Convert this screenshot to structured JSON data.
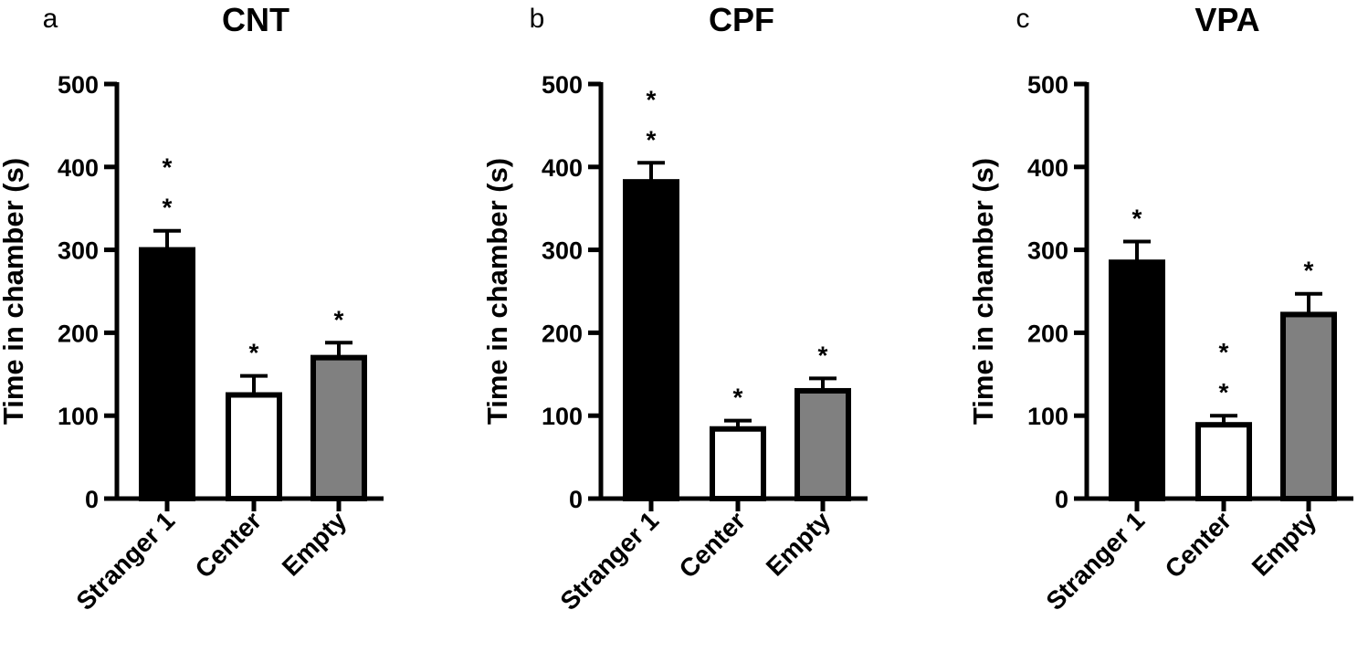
{
  "colors": {
    "Stranger 1": "#000000",
    "Center": "#ffffff",
    "Empty": "#808080"
  },
  "chart_data": [
    {
      "type": "bar",
      "panel": "a",
      "title": "CNT",
      "ylabel": "Time in chamber (s)",
      "xlabel": "",
      "categories": [
        "Stranger 1",
        "Center",
        "Empty"
      ],
      "values": [
        300,
        125,
        170
      ],
      "errors": [
        23,
        23,
        18
      ],
      "significance": [
        "*\n*",
        "*",
        "*"
      ],
      "ylim": [
        0,
        500
      ],
      "yticks": [
        0,
        100,
        200,
        300,
        400,
        500
      ],
      "grid": false
    },
    {
      "type": "bar",
      "panel": "b",
      "title": "CPF",
      "ylabel": "Time in chamber (s)",
      "xlabel": "",
      "categories": [
        "Stranger 1",
        "Center",
        "Empty"
      ],
      "values": [
        382,
        84,
        130
      ],
      "errors": [
        23,
        10,
        15
      ],
      "significance": [
        "*\n*",
        "*",
        "*"
      ],
      "ylim": [
        0,
        500
      ],
      "yticks": [
        0,
        100,
        200,
        300,
        400,
        500
      ],
      "grid": false
    },
    {
      "type": "bar",
      "panel": "c",
      "title": "VPA",
      "ylabel": "Time in chamber (s)",
      "xlabel": "",
      "categories": [
        "Stranger 1",
        "Center",
        "Empty"
      ],
      "values": [
        285,
        89,
        222
      ],
      "errors": [
        25,
        11,
        25
      ],
      "significance": [
        "*",
        "*\n*",
        "*"
      ],
      "ylim": [
        0,
        500
      ],
      "yticks": [
        0,
        100,
        200,
        300,
        400,
        500
      ],
      "grid": false
    }
  ]
}
